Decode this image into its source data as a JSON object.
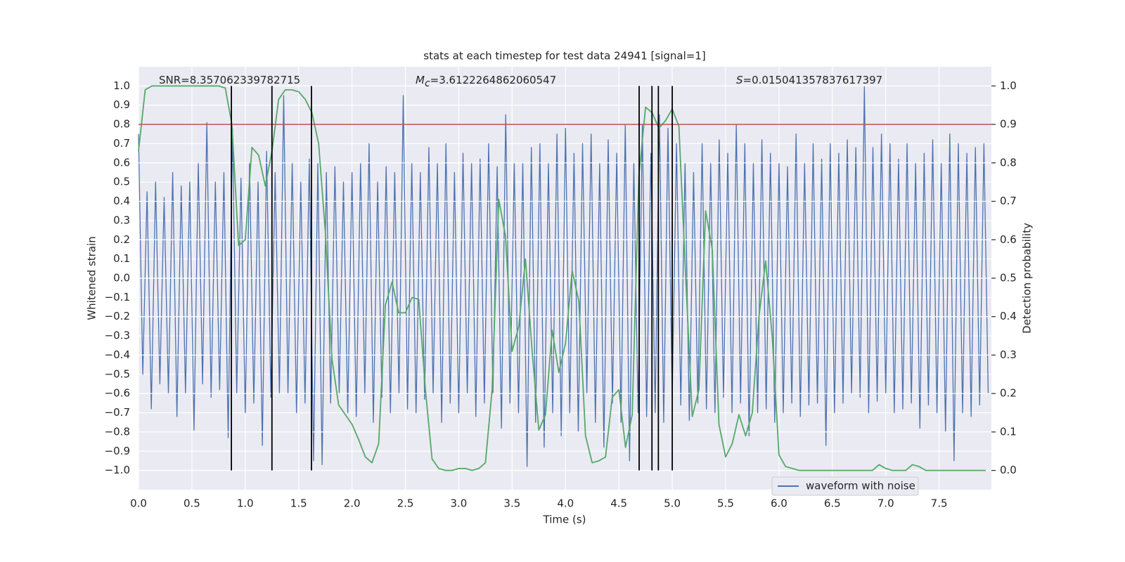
{
  "chart_data": {
    "type": "line",
    "title": "stats at each timestep for test data 24941 [signal=1]",
    "xlabel": "Time (s)",
    "ylabel": "Whitened strain",
    "y2label": "Detection probability",
    "xlim": [
      0,
      7.99
    ],
    "ylim": [
      -1.1,
      1.1
    ],
    "y2lim": [
      -0.05,
      1.05
    ],
    "grid": true,
    "legend": "lower right",
    "xticks": [
      {
        "value": 0,
        "label": "0.0"
      },
      {
        "value": 0.5,
        "label": "0.5"
      },
      {
        "value": 1,
        "label": "1.0"
      },
      {
        "value": 1.5,
        "label": "1.5"
      },
      {
        "value": 2,
        "label": "2.0"
      },
      {
        "value": 2.5,
        "label": "2.5"
      },
      {
        "value": 3,
        "label": "3.0"
      },
      {
        "value": 3.5,
        "label": "3.5"
      },
      {
        "value": 4,
        "label": "4.0"
      },
      {
        "value": 4.5,
        "label": "4.5"
      },
      {
        "value": 5,
        "label": "5.0"
      },
      {
        "value": 5.5,
        "label": "5.5"
      },
      {
        "value": 6,
        "label": "6.0"
      },
      {
        "value": 6.5,
        "label": "6.5"
      },
      {
        "value": 7,
        "label": "7.0"
      },
      {
        "value": 7.5,
        "label": "7.5"
      }
    ],
    "yticks": [
      {
        "value": 1,
        "label": "1.0"
      },
      {
        "value": 0.9,
        "label": "0.9"
      },
      {
        "value": 0.8,
        "label": "0.8"
      },
      {
        "value": 0.7,
        "label": "0.7"
      },
      {
        "value": 0.6,
        "label": "0.6"
      },
      {
        "value": 0.5,
        "label": "0.5"
      },
      {
        "value": 0.4,
        "label": "0.4"
      },
      {
        "value": 0.3,
        "label": "0.3"
      },
      {
        "value": 0.2,
        "label": "0.2"
      },
      {
        "value": 0.1,
        "label": "0.1"
      },
      {
        "value": 0,
        "label": "0.0"
      },
      {
        "value": -0.1,
        "label": "−0.1"
      },
      {
        "value": -0.2,
        "label": "−0.2"
      },
      {
        "value": -0.3,
        "label": "−0.3"
      },
      {
        "value": -0.4,
        "label": "−0.4"
      },
      {
        "value": -0.5,
        "label": "−0.5"
      },
      {
        "value": -0.6,
        "label": "−0.6"
      },
      {
        "value": -0.7,
        "label": "−0.7"
      },
      {
        "value": -0.8,
        "label": "−0.8"
      },
      {
        "value": -0.9,
        "label": "−0.9"
      },
      {
        "value": -1,
        "label": "−1.0"
      }
    ],
    "y2ticks": [
      {
        "value": 0,
        "label": "0.0"
      },
      {
        "value": 0.1,
        "label": "0.1"
      },
      {
        "value": 0.2,
        "label": "0.2"
      },
      {
        "value": 0.3,
        "label": "0.3"
      },
      {
        "value": 0.4,
        "label": "0.4"
      },
      {
        "value": 0.5,
        "label": "0.5"
      },
      {
        "value": 0.6,
        "label": "0.6"
      },
      {
        "value": 0.7,
        "label": "0.7"
      },
      {
        "value": 0.8,
        "label": "0.8"
      },
      {
        "value": 0.9,
        "label": "0.9"
      },
      {
        "value": 1,
        "label": "1.0"
      }
    ],
    "annotations": [
      {
        "text": "SNR=8.357062339782715"
      },
      {
        "symbol": "M",
        "subscript": "c",
        "text": "=3.6122264862060547"
      },
      {
        "symbol": "S",
        "text": "=0.015041357837617397"
      }
    ],
    "hlines": [
      {
        "y": 0.8,
        "color": "#c44e52"
      }
    ],
    "vlines": [
      {
        "x": 0.87,
        "ymin": -1,
        "ymax": 1,
        "color": "#000000"
      },
      {
        "x": 1.25,
        "ymin": -1,
        "ymax": 1,
        "color": "#000000"
      },
      {
        "x": 1.62,
        "ymin": -1,
        "ymax": 1,
        "color": "#000000"
      },
      {
        "x": 4.69,
        "ymin": -1,
        "ymax": 1,
        "color": "#000000"
      },
      {
        "x": 4.81,
        "ymin": -1,
        "ymax": 1,
        "color": "#000000"
      },
      {
        "x": 4.87,
        "ymin": -1,
        "ymax": 1,
        "color": "#000000"
      },
      {
        "x": 5.0,
        "ymin": -1,
        "ymax": 1,
        "color": "#000000"
      }
    ],
    "series": [
      {
        "name": "waveform with noise",
        "color": "#4c72b0",
        "x": [
          0,
          0.04,
          0.08,
          0.12,
          0.16,
          0.2,
          0.24,
          0.28,
          0.32,
          0.36,
          0.4,
          0.44,
          0.48,
          0.52,
          0.56,
          0.6,
          0.64,
          0.68,
          0.72,
          0.76,
          0.8,
          0.84,
          0.88,
          0.92,
          0.96,
          1,
          1.04,
          1.08,
          1.12,
          1.16,
          1.2,
          1.24,
          1.28,
          1.32,
          1.36,
          1.4,
          1.44,
          1.48,
          1.52,
          1.56,
          1.6,
          1.64,
          1.68,
          1.72,
          1.76,
          1.8,
          1.84,
          1.88,
          1.92,
          1.96,
          2,
          2.04,
          2.08,
          2.12,
          2.16,
          2.2,
          2.24,
          2.28,
          2.32,
          2.36,
          2.4,
          2.44,
          2.48,
          2.52,
          2.56,
          2.6,
          2.64,
          2.68,
          2.72,
          2.76,
          2.8,
          2.84,
          2.88,
          2.92,
          2.96,
          3,
          3.04,
          3.08,
          3.12,
          3.16,
          3.2,
          3.24,
          3.28,
          3.32,
          3.36,
          3.4,
          3.44,
          3.48,
          3.52,
          3.56,
          3.6,
          3.64,
          3.68,
          3.72,
          3.76,
          3.8,
          3.84,
          3.88,
          3.92,
          3.96,
          4,
          4.04,
          4.08,
          4.12,
          4.16,
          4.2,
          4.24,
          4.28,
          4.32,
          4.36,
          4.4,
          4.44,
          4.48,
          4.52,
          4.56,
          4.6,
          4.64,
          4.68,
          4.72,
          4.76,
          4.8,
          4.84,
          4.88,
          4.92,
          4.96,
          5,
          5.04,
          5.08,
          5.12,
          5.16,
          5.2,
          5.24,
          5.28,
          5.32,
          5.36,
          5.4,
          5.44,
          5.48,
          5.52,
          5.56,
          5.6,
          5.64,
          5.68,
          5.72,
          5.76,
          5.8,
          5.84,
          5.88,
          5.92,
          5.96,
          6,
          6.04,
          6.08,
          6.12,
          6.16,
          6.2,
          6.24,
          6.28,
          6.32,
          6.36,
          6.4,
          6.44,
          6.48,
          6.52,
          6.56,
          6.6,
          6.64,
          6.68,
          6.72,
          6.76,
          6.8,
          6.84,
          6.88,
          6.92,
          6.96,
          7,
          7.04,
          7.08,
          7.12,
          7.16,
          7.2,
          7.24,
          7.28,
          7.32,
          7.36,
          7.4,
          7.44,
          7.48,
          7.52,
          7.56,
          7.6,
          7.64,
          7.68,
          7.72,
          7.76,
          7.8,
          7.84,
          7.88,
          7.92,
          7.96
        ],
        "values": [
          0.75,
          -0.5,
          0.45,
          -0.68,
          0.5,
          -0.55,
          0.42,
          -0.6,
          0.55,
          -0.72,
          0.48,
          -0.6,
          0.5,
          -0.79,
          0.6,
          -0.55,
          0.81,
          -0.62,
          0.5,
          -0.58,
          0.55,
          -0.83,
          0.78,
          -0.6,
          0.52,
          -0.7,
          0.6,
          -0.65,
          0.5,
          -0.87,
          0.66,
          -0.62,
          0.55,
          -0.6,
          0.95,
          -0.6,
          0.6,
          -0.7,
          0.5,
          -0.65,
          0.62,
          -0.95,
          0.6,
          -0.97,
          0.55,
          -0.65,
          0.58,
          -0.6,
          0.5,
          -0.7,
          0.55,
          -0.72,
          0.6,
          -0.6,
          0.7,
          -0.75,
          0.5,
          -0.62,
          0.58,
          -0.7,
          0.55,
          -0.6,
          0.95,
          -0.68,
          0.6,
          -0.7,
          0.55,
          -0.63,
          0.68,
          -0.6,
          0.6,
          -0.75,
          0.7,
          -0.65,
          0.55,
          -0.7,
          0.65,
          -0.6,
          0.6,
          -0.72,
          0.62,
          -0.65,
          0.7,
          -0.6,
          0.58,
          -0.78,
          0.85,
          -0.65,
          0.6,
          -0.7,
          0.6,
          -0.98,
          0.68,
          -0.75,
          0.7,
          -0.88,
          0.6,
          -0.7,
          0.75,
          -0.82,
          0.78,
          -0.7,
          0.65,
          -0.8,
          0.7,
          -0.6,
          0.75,
          -0.75,
          0.6,
          -0.88,
          0.72,
          -0.65,
          0.65,
          -0.75,
          0.8,
          -0.95,
          0.6,
          -0.7,
          0.8,
          -0.72,
          0.65,
          -0.7,
          0.85,
          -0.75,
          0.78,
          -0.62,
          0.7,
          -0.66,
          0.6,
          -0.74,
          0.55,
          -0.65,
          0.7,
          -0.68,
          0.6,
          -0.7,
          0.72,
          -0.62,
          0.65,
          -0.7,
          0.8,
          -0.65,
          0.7,
          -0.82,
          0.6,
          -0.7,
          0.72,
          -0.68,
          0.65,
          -0.75,
          0.6,
          -0.7,
          0.58,
          -0.65,
          0.75,
          -0.72,
          0.6,
          -0.66,
          0.7,
          -0.65,
          0.62,
          -0.87,
          0.7,
          -0.7,
          0.65,
          -0.65,
          0.72,
          -0.6,
          0.68,
          -0.62,
          1.0,
          -0.7,
          0.68,
          -0.64,
          0.75,
          -0.6,
          0.7,
          -0.7,
          0.62,
          -0.68,
          0.7,
          -0.65,
          0.6,
          -0.78,
          0.65,
          -0.66,
          0.72,
          -0.7,
          0.6,
          -0.8,
          0.75,
          -0.95,
          0.7,
          -0.7,
          0.65,
          -0.72,
          0.68,
          -0.66,
          0.7,
          -0.6
        ]
      },
      {
        "color": "#55a868",
        "axis": "y2",
        "x": [
          0,
          0.0625,
          0.125,
          0.1875,
          0.25,
          0.3125,
          0.375,
          0.4375,
          0.5,
          0.5625,
          0.625,
          0.6875,
          0.75,
          0.8125,
          0.875,
          0.9375,
          1,
          1.0625,
          1.125,
          1.1875,
          1.25,
          1.3125,
          1.375,
          1.4375,
          1.5,
          1.5625,
          1.625,
          1.6875,
          1.75,
          1.8125,
          1.875,
          1.9375,
          2,
          2.0625,
          2.125,
          2.1875,
          2.25,
          2.3125,
          2.375,
          2.4375,
          2.5,
          2.5625,
          2.625,
          2.6875,
          2.75,
          2.8125,
          2.875,
          2.9375,
          3,
          3.0625,
          3.125,
          3.1875,
          3.25,
          3.3125,
          3.375,
          3.4375,
          3.5,
          3.5625,
          3.625,
          3.6875,
          3.75,
          3.8125,
          3.875,
          3.9375,
          4,
          4.0625,
          4.125,
          4.1875,
          4.25,
          4.3125,
          4.375,
          4.4375,
          4.5,
          4.5625,
          4.625,
          4.6875,
          4.75,
          4.8125,
          4.875,
          4.9375,
          5,
          5.0625,
          5.125,
          5.1875,
          5.25,
          5.3125,
          5.375,
          5.4375,
          5.5,
          5.5625,
          5.625,
          5.6875,
          5.75,
          5.8125,
          5.875,
          5.9375,
          6,
          6.0625,
          6.125,
          6.1875,
          6.25,
          6.3125,
          6.375,
          6.4375,
          6.5,
          6.5625,
          6.625,
          6.6875,
          6.75,
          6.8125,
          6.875,
          6.9375,
          7,
          7.0625,
          7.125,
          7.1875,
          7.25,
          7.3125,
          7.375,
          7.4375,
          7.5,
          7.5625,
          7.625,
          7.6875,
          7.75,
          7.8125,
          7.875,
          7.9375
        ],
        "values": [
          0.83,
          0.99,
          1.0,
          1.0,
          1.0,
          1.0,
          1.0,
          1.0,
          1.0,
          1.0,
          1.0,
          1.0,
          1.0,
          0.995,
          0.9,
          0.585,
          0.6,
          0.84,
          0.82,
          0.74,
          0.83,
          0.965,
          0.99,
          0.99,
          0.985,
          0.965,
          0.93,
          0.85,
          0.62,
          0.29,
          0.17,
          0.145,
          0.12,
          0.08,
          0.035,
          0.02,
          0.07,
          0.43,
          0.49,
          0.41,
          0.41,
          0.45,
          0.445,
          0.21,
          0.03,
          0.005,
          0,
          0,
          0.005,
          0.005,
          0,
          0.005,
          0.02,
          0.21,
          0.705,
          0.61,
          0.31,
          0.375,
          0.55,
          0.31,
          0.105,
          0.145,
          0.365,
          0.255,
          0.33,
          0.52,
          0.44,
          0.09,
          0.02,
          0.025,
          0.035,
          0.19,
          0.21,
          0.06,
          0.145,
          0.765,
          0.945,
          0.93,
          0.89,
          0.91,
          0.94,
          0.895,
          0.51,
          0.14,
          0.21,
          0.675,
          0.575,
          0.12,
          0.035,
          0.07,
          0.145,
          0.09,
          0.15,
          0.4,
          0.545,
          0.345,
          0.04,
          0.01,
          0.005,
          0,
          0,
          0,
          0,
          0,
          0,
          0,
          0,
          0,
          0,
          0,
          0,
          0.015,
          0.005,
          0,
          0,
          0,
          0.015,
          0.01,
          0,
          0,
          0,
          0,
          0,
          0,
          0,
          0,
          0,
          0
        ]
      }
    ]
  }
}
